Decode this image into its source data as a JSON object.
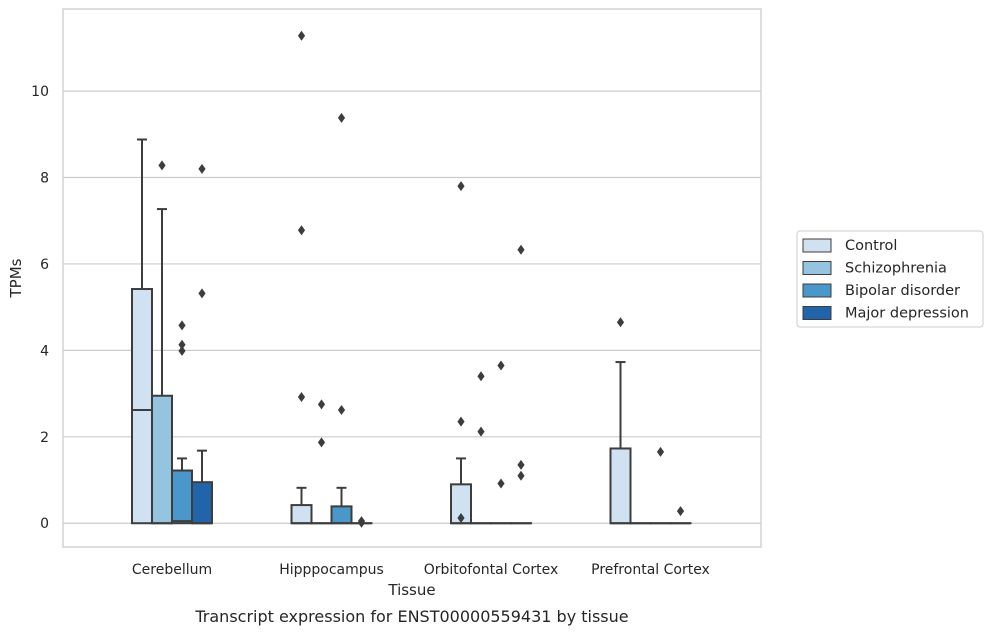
{
  "chart_data": {
    "type": "boxplot",
    "title": "",
    "caption": "Transcript expression for ENST00000559431 by tissue",
    "xlabel": "Tissue",
    "ylabel": "TPMs",
    "ylim": [
      -0.55,
      11.9
    ],
    "y_ticks": [
      0,
      2,
      4,
      6,
      8,
      10
    ],
    "grid": true,
    "legend_placement": "right",
    "categories": [
      "Cerebellum",
      "Hipppocampus",
      "Orbitofontal Cortex",
      "Prefrontal Cortex"
    ],
    "series": [
      {
        "name": "Control",
        "color": "#d0e1f2",
        "boxes": [
          {
            "q1": 0,
            "median": 2.62,
            "q3": 5.42,
            "whisker_low": 0,
            "whisker_high": 8.88,
            "outliers": []
          },
          {
            "q1": 0,
            "median": 0,
            "q3": 0.42,
            "whisker_low": 0,
            "whisker_high": 0.82,
            "outliers": [
              11.28,
              6.78,
              2.92
            ]
          },
          {
            "q1": 0,
            "median": 0,
            "q3": 0.9,
            "whisker_low": 0,
            "whisker_high": 1.5,
            "outliers": [
              7.8,
              2.35,
              0.12
            ]
          },
          {
            "q1": 0,
            "median": 0,
            "q3": 1.73,
            "whisker_low": 0,
            "whisker_high": 3.73,
            "outliers": [
              4.65
            ]
          }
        ]
      },
      {
        "name": "Schizophrenia",
        "color": "#94c4df",
        "boxes": [
          {
            "q1": 0,
            "median": 0,
            "q3": 2.95,
            "whisker_low": 0,
            "whisker_high": 7.27,
            "outliers": [
              8.28
            ]
          },
          {
            "q1": 0,
            "median": 0,
            "q3": 0,
            "whisker_low": 0,
            "whisker_high": 0,
            "outliers": [
              2.75,
              1.87
            ]
          },
          {
            "q1": 0,
            "median": 0,
            "q3": 0,
            "whisker_low": 0,
            "whisker_high": 0,
            "outliers": [
              3.4,
              2.12
            ]
          },
          {
            "q1": 0,
            "median": 0,
            "q3": 0,
            "whisker_low": 0,
            "whisker_high": 0,
            "outliers": []
          }
        ]
      },
      {
        "name": "Bipolar disorder",
        "color": "#4a98c9",
        "boxes": [
          {
            "q1": 0,
            "median": 0.05,
            "q3": 1.22,
            "whisker_low": 0,
            "whisker_high": 1.5,
            "outliers": [
              4.58,
              4.13,
              3.99
            ]
          },
          {
            "q1": 0,
            "median": 0,
            "q3": 0.39,
            "whisker_low": 0,
            "whisker_high": 0.82,
            "outliers": [
              9.38,
              2.62
            ]
          },
          {
            "q1": 0,
            "median": 0,
            "q3": 0,
            "whisker_low": 0,
            "whisker_high": 0,
            "outliers": [
              3.65,
              0.92
            ]
          },
          {
            "q1": 0,
            "median": 0,
            "q3": 0,
            "whisker_low": 0,
            "whisker_high": 0,
            "outliers": [
              1.65
            ]
          }
        ]
      },
      {
        "name": "Major depression",
        "color": "#2264a9",
        "boxes": [
          {
            "q1": 0,
            "median": 0,
            "q3": 0.95,
            "whisker_low": 0,
            "whisker_high": 1.68,
            "outliers": [
              8.2,
              5.32
            ]
          },
          {
            "q1": 0,
            "median": 0,
            "q3": 0,
            "whisker_low": 0,
            "whisker_high": 0,
            "outliers": [
              0.05,
              0.01
            ]
          },
          {
            "q1": 0,
            "median": 0,
            "q3": 0,
            "whisker_low": 0,
            "whisker_high": 0,
            "outliers": [
              6.33,
              1.35,
              1.1
            ]
          },
          {
            "q1": 0,
            "median": 0,
            "q3": 0,
            "whisker_low": 0,
            "whisker_high": 0,
            "outliers": [
              0.28
            ]
          }
        ]
      }
    ]
  }
}
